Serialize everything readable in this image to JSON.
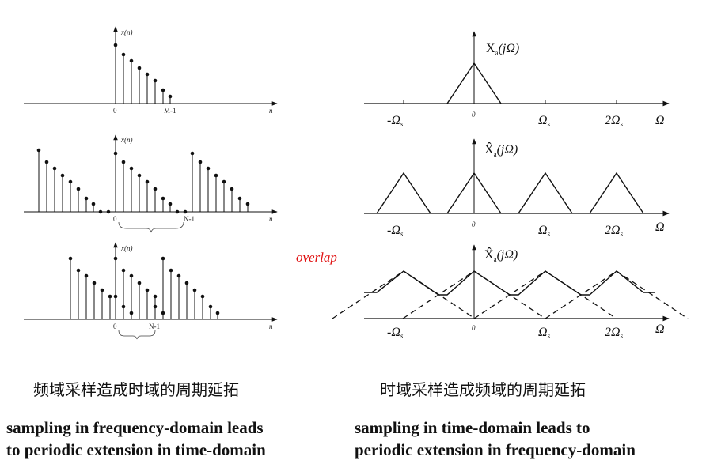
{
  "left_panel": {
    "plot1": {
      "ylabel": "x(n)",
      "origin_label": "0",
      "end_label": "M-1",
      "axis_var": "n"
    },
    "plot2": {
      "ylabel": "x(n)",
      "origin_label": "0",
      "end_label": "N-1",
      "axis_var": "n"
    },
    "plot3": {
      "ylabel": "x(n)",
      "origin_label": "0",
      "end_label": "N-1",
      "axis_var": "n"
    }
  },
  "right_panel": {
    "plot1": {
      "ylabel_main": "X",
      "ylabel_sub": "a",
      "ylabel_arg": "(jΩ)",
      "ticks": [
        "-Ω",
        "0",
        "Ω",
        "2Ω"
      ],
      "tick_sub": "s",
      "axis_var": "Ω"
    },
    "plot2": {
      "ylabel_main": "X̂",
      "ylabel_sub": "a",
      "ylabel_arg": "(jΩ)",
      "ticks": [
        "-Ω",
        "0",
        "Ω",
        "2Ω"
      ],
      "tick_sub": "s",
      "axis_var": "Ω"
    },
    "plot3": {
      "ylabel_main": "X̂",
      "ylabel_sub": "a",
      "ylabel_arg": "(jΩ)",
      "ticks": [
        "-Ω",
        "0",
        "Ω",
        "2Ω"
      ],
      "tick_sub": "s",
      "axis_var": "Ω"
    }
  },
  "overlap_label": "overlap",
  "captions": {
    "left_cn": "频域采样造成时域的周期延拓",
    "right_cn": "时域采样造成频域的周期延拓",
    "left_en_line1": "sampling in frequency-domain leads",
    "left_en_line2": "to periodic extension in time-domain",
    "right_en_line1": "sampling in time-domain leads to",
    "right_en_line2": "periodic extension in frequency-domain"
  },
  "colors": {
    "ink": "#111111",
    "overlap": "#e01010"
  }
}
